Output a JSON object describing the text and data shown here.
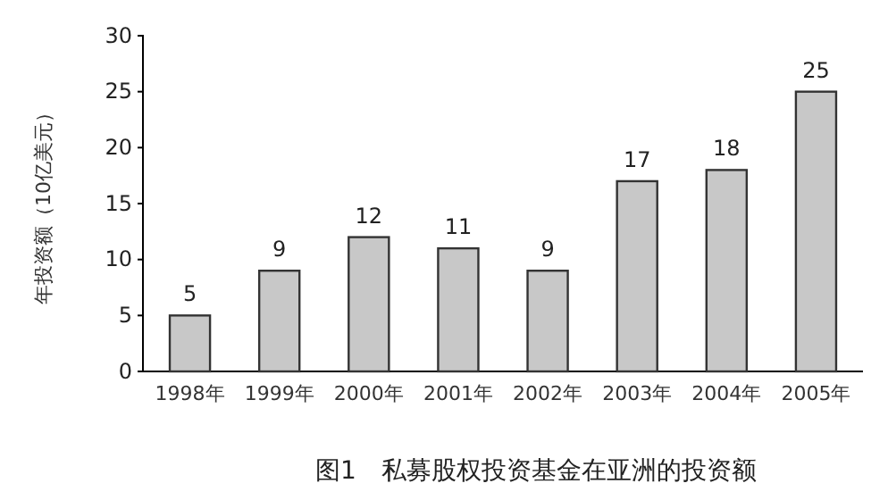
{
  "chart_data": {
    "type": "bar",
    "title": "图1　私募股权投资基金在亚洲的投资额",
    "ylabel": "年投资额（10亿美元）",
    "categories": [
      "1998年",
      "1999年",
      "2000年",
      "2001年",
      "2002年",
      "2003年",
      "2004年",
      "2005年"
    ],
    "values": [
      5,
      9,
      12,
      11,
      9,
      17,
      18,
      25
    ],
    "color": "#c8c8c8",
    "ylim": [
      0,
      30
    ],
    "yticks": [
      0,
      5,
      10,
      15,
      20,
      25,
      30
    ],
    "data_labels": true
  }
}
